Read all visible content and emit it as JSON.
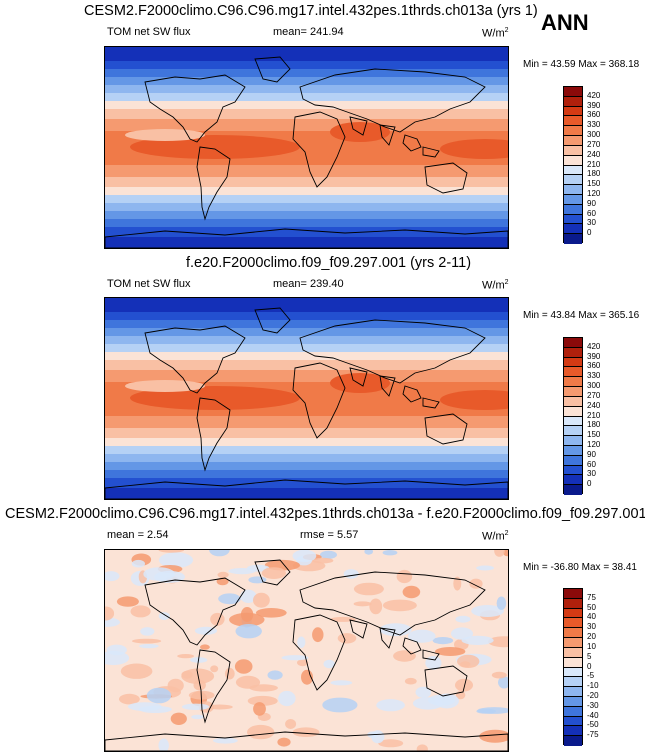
{
  "season": "ANN",
  "panels": [
    {
      "title": "CESM2.F2000climo.C96.C96.mg17.intel.432pes.1thrds.ch013a (yrs 1)",
      "left_label": "TOM net SW flux",
      "mid_label": "mean= 241.94",
      "units": "W/m",
      "units_exp": "2",
      "minmax": "Min =  43.59 Max = 368.18",
      "kind": "abs",
      "colorbar": {
        "labels": [
          "420",
          "390",
          "360",
          "330",
          "300",
          "270",
          "240",
          "210",
          "180",
          "150",
          "120",
          "90",
          "60",
          "30",
          "0"
        ],
        "colors": [
          "#8b0a0a",
          "#b0200c",
          "#d43a14",
          "#e85a2a",
          "#f07a48",
          "#f59a70",
          "#f9c0a4",
          "#fbe3d6",
          "#d9e8fa",
          "#b5d1f5",
          "#8eb6ef",
          "#6497e6",
          "#3f75dc",
          "#2350d0",
          "#1430b8",
          "#0a1a8c"
        ]
      }
    },
    {
      "title": "f.e20.F2000climo.f09_f09.297.001 (yrs 2-11)",
      "left_label": "TOM net SW flux",
      "mid_label": "mean= 239.40",
      "units": "W/m",
      "units_exp": "2",
      "minmax": "Min =  43.84 Max = 365.16",
      "kind": "abs",
      "colorbar": {
        "labels": [
          "420",
          "390",
          "360",
          "330",
          "300",
          "270",
          "240",
          "210",
          "180",
          "150",
          "120",
          "90",
          "60",
          "30",
          "0"
        ],
        "colors": [
          "#8b0a0a",
          "#b0200c",
          "#d43a14",
          "#e85a2a",
          "#f07a48",
          "#f59a70",
          "#f9c0a4",
          "#fbe3d6",
          "#d9e8fa",
          "#b5d1f5",
          "#8eb6ef",
          "#6497e6",
          "#3f75dc",
          "#2350d0",
          "#1430b8",
          "#0a1a8c"
        ]
      }
    },
    {
      "title": "CESM2.F2000climo.C96.C96.mg17.intel.432pes.1thrds.ch013a - f.e20.F2000climo.f09_f09.297.001",
      "left_label": "mean =   2.54",
      "mid_label": "rmse =   5.57",
      "units": "W/m",
      "units_exp": "2",
      "minmax": "Min = -36.80 Max =  38.41",
      "kind": "diff",
      "colorbar": {
        "labels": [
          "75",
          "50",
          "40",
          "30",
          "20",
          "10",
          "5",
          "0",
          "-5",
          "-10",
          "-20",
          "-30",
          "-40",
          "-50",
          "-75"
        ],
        "colors": [
          "#8b0a0a",
          "#b0200c",
          "#d43a14",
          "#e85a2a",
          "#f07a48",
          "#f59a70",
          "#f9c0a4",
          "#fbe3d6",
          "#d9e8fa",
          "#b5d1f5",
          "#8eb6ef",
          "#6497e6",
          "#3f75dc",
          "#2350d0",
          "#1430b8",
          "#0a1a8c"
        ]
      }
    }
  ]
}
